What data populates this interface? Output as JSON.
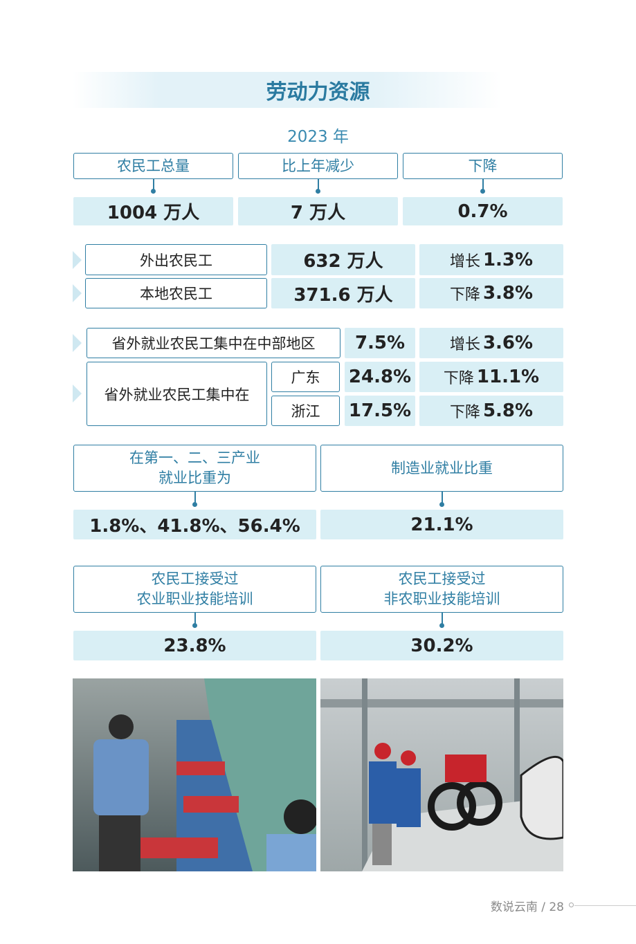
{
  "title": "劳动力资源",
  "year": "2023 年",
  "summary": {
    "headers": [
      "农民工总量",
      "比上年减少",
      "下降"
    ],
    "values": [
      "1004 万人",
      "7 万人",
      "0.7%"
    ]
  },
  "migrants": [
    {
      "label": "外出农民工",
      "value": "632 万人",
      "change": {
        "direction": "增长",
        "rate": "1.3%"
      }
    },
    {
      "label": "本地农民工",
      "value": "371.6 万人",
      "change": {
        "direction": "下降",
        "rate": "3.8%"
      }
    }
  ],
  "outside": {
    "central": {
      "label": "省外就业农民工集中在中部地区",
      "value": "7.5%",
      "change": {
        "direction": "增长",
        "rate": "3.6%"
      }
    },
    "concentrated": {
      "label": "省外就业农民工集中在",
      "provinces": [
        {
          "name": "广东",
          "value": "24.8%",
          "change": {
            "direction": "下降",
            "rate": "11.1%"
          }
        },
        {
          "name": "浙江",
          "value": "17.5%",
          "change": {
            "direction": "下降",
            "rate": "5.8%"
          }
        }
      ]
    }
  },
  "industry": {
    "headers": [
      [
        "在第一、二、三产业",
        "就业比重为"
      ],
      [
        "制造业就业比重"
      ]
    ],
    "values": [
      "1.8%、41.8%、56.4%",
      "21.1%"
    ]
  },
  "training": {
    "headers": [
      [
        "农民工接受过",
        "农业职业技能培训"
      ],
      [
        "农民工接受过",
        "非农职业技能培训"
      ]
    ],
    "values": [
      "23.8%",
      "30.2%"
    ]
  },
  "footer": "数说云南 / 28"
}
